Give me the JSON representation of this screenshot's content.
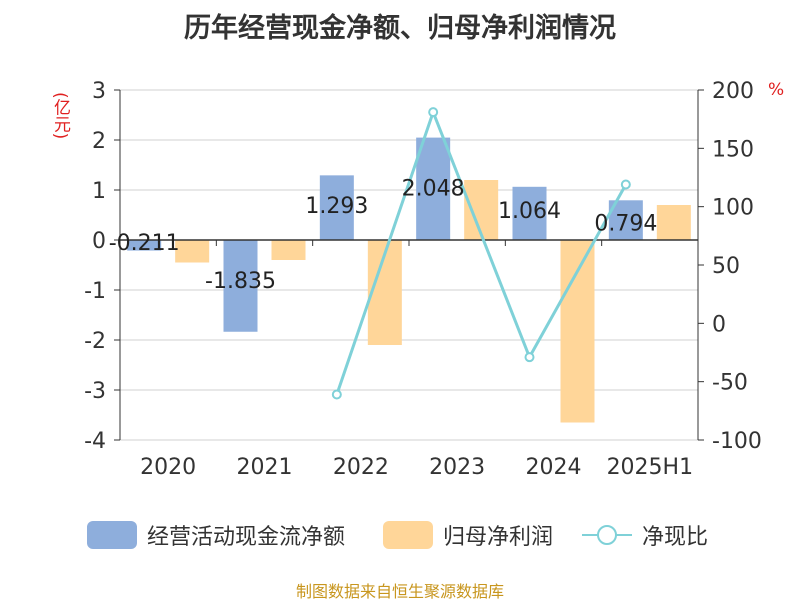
{
  "title": "历年经营现金净额、归母净利润情况",
  "source": "制图数据来自恒生聚源数据库",
  "colors": {
    "cash": "#8eaedc",
    "profit": "#ffd699",
    "ratio": "#7fd1d8",
    "unit": "#e02020",
    "source": "#c8961e"
  },
  "chart_data": {
    "type": "bar",
    "title": "历年经营现金净额、归母净利润情况",
    "categories": [
      "2020",
      "2021",
      "2022",
      "2023",
      "2024",
      "2025H1"
    ],
    "y_left": {
      "unit": "(亿元)",
      "range": [
        -4,
        3
      ],
      "ticks": [
        "-4",
        "-3",
        "-2",
        "-1",
        "0",
        "1",
        "2",
        "3"
      ]
    },
    "y_right": {
      "unit": "%",
      "range": [
        -100,
        200
      ],
      "ticks": [
        "-100",
        "-50",
        "0",
        "50",
        "100",
        "150",
        "200"
      ]
    },
    "series": [
      {
        "name": "经营活动现金流净额",
        "kind": "bar",
        "axis": "left",
        "values": [
          -0.211,
          -1.835,
          1.293,
          2.048,
          1.064,
          0.794
        ],
        "labels": [
          "-0.211",
          "-1.835",
          "1.293",
          "2.048",
          "1.064",
          "0.794"
        ]
      },
      {
        "name": "归母净利润",
        "kind": "bar",
        "axis": "left",
        "values": [
          -0.45,
          -0.4,
          -2.1,
          1.2,
          -3.65,
          0.7
        ]
      },
      {
        "name": "净现比",
        "kind": "line",
        "axis": "right",
        "values": [
          null,
          null,
          -61,
          181,
          -29,
          119
        ]
      }
    ],
    "legend_position": "bottom",
    "grid": true
  }
}
